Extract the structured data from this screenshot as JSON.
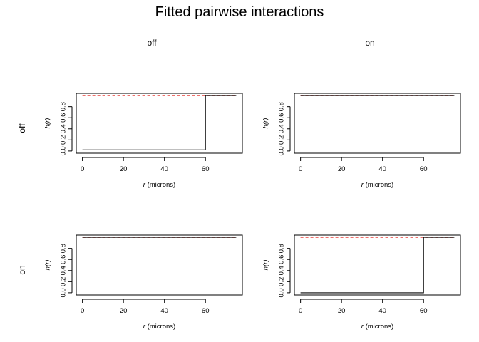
{
  "title": "Fitted pairwise interactions",
  "column_headers": [
    "off",
    "on"
  ],
  "row_headers": [
    "off",
    "on"
  ],
  "colors": {
    "fitted_line": "#000000",
    "reference_line": "#e8403a"
  },
  "chart_data": [
    {
      "type": "line",
      "row": "off",
      "col": "off",
      "xlabel_var": "r",
      "xlabel_unit": " (microns)",
      "ylabel": "h(r)",
      "xlim": [
        0,
        75
      ],
      "ylim": [
        0,
        1
      ],
      "xticks": [
        0,
        20,
        40,
        60
      ],
      "yticks": [
        0.0,
        0.2,
        0.4,
        0.6,
        0.8
      ],
      "ytick_labels": [
        "0.0",
        "0.2",
        "0.4",
        "0.6",
        "0.8"
      ],
      "series": [
        {
          "style": "solid",
          "color": "#000000",
          "x": [
            0,
            60,
            60,
            75
          ],
          "y": [
            0.02,
            0.02,
            1.0,
            1.0
          ]
        },
        {
          "style": "dashed",
          "color": "#e8403a",
          "x": [
            0,
            75
          ],
          "y": [
            1.0,
            1.0
          ]
        }
      ]
    },
    {
      "type": "line",
      "row": "off",
      "col": "on",
      "xlabel_var": "r",
      "xlabel_unit": " (microns)",
      "ylabel": "h(r)",
      "xlim": [
        0,
        75
      ],
      "ylim": [
        0,
        1
      ],
      "xticks": [
        0,
        20,
        40,
        60
      ],
      "yticks": [
        0.0,
        0.2,
        0.4,
        0.6,
        0.8
      ],
      "ytick_labels": [
        "0.0",
        "0.2",
        "0.4",
        "0.6",
        "0.8"
      ],
      "series": [
        {
          "style": "solid",
          "color": "#000000",
          "x": [
            0,
            75
          ],
          "y": [
            1.0,
            1.0
          ]
        },
        {
          "style": "dashed",
          "color": "#e8403a",
          "x": [
            0,
            75
          ],
          "y": [
            1.0,
            1.0
          ]
        }
      ]
    },
    {
      "type": "line",
      "row": "on",
      "col": "off",
      "xlabel_var": "r",
      "xlabel_unit": " (microns)",
      "ylabel": "h(r)",
      "xlim": [
        0,
        75
      ],
      "ylim": [
        0,
        1
      ],
      "xticks": [
        0,
        20,
        40,
        60
      ],
      "yticks": [
        0.0,
        0.2,
        0.4,
        0.6,
        0.8
      ],
      "ytick_labels": [
        "0.0",
        "0.2",
        "0.4",
        "0.6",
        "0.8"
      ],
      "series": [
        {
          "style": "solid",
          "color": "#000000",
          "x": [
            0,
            75
          ],
          "y": [
            1.0,
            1.0
          ]
        },
        {
          "style": "dashed",
          "color": "#e8403a",
          "x": [
            0,
            75
          ],
          "y": [
            1.0,
            1.0
          ]
        }
      ]
    },
    {
      "type": "line",
      "row": "on",
      "col": "on",
      "xlabel_var": "r",
      "xlabel_unit": " (microns)",
      "ylabel": "h(r)",
      "xlim": [
        0,
        75
      ],
      "ylim": [
        0,
        1
      ],
      "xticks": [
        0,
        20,
        40,
        60
      ],
      "yticks": [
        0.0,
        0.2,
        0.4,
        0.6,
        0.8
      ],
      "ytick_labels": [
        "0.0",
        "0.2",
        "0.4",
        "0.6",
        "0.8"
      ],
      "series": [
        {
          "style": "solid",
          "color": "#000000",
          "x": [
            0,
            60,
            60,
            75
          ],
          "y": [
            0.0,
            0.0,
            1.0,
            1.0
          ]
        },
        {
          "style": "dashed",
          "color": "#e8403a",
          "x": [
            0,
            75
          ],
          "y": [
            1.0,
            1.0
          ]
        }
      ]
    }
  ]
}
